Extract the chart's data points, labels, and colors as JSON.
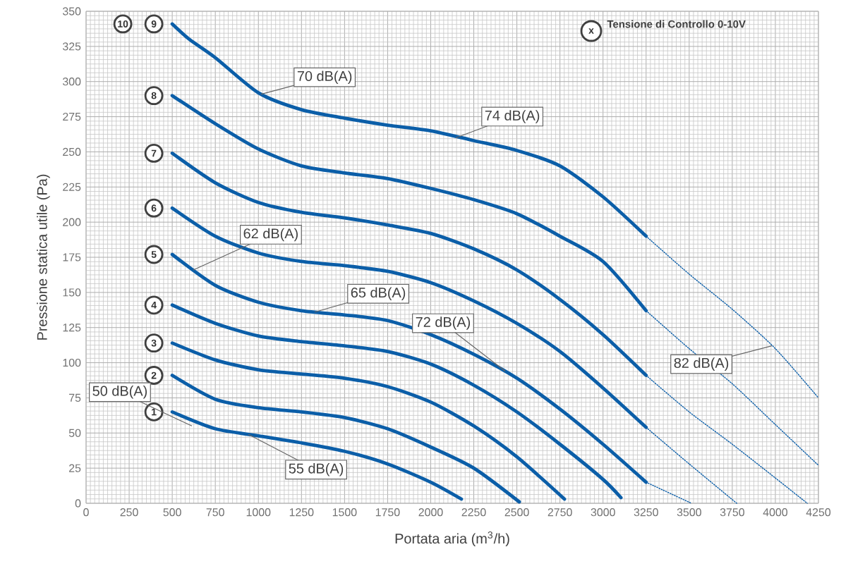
{
  "chart_data": {
    "type": "line",
    "xlabel": "Portata aria (m$^{3}$/h)",
    "ylabel": "Pressione statica utile (Pa)",
    "xlim": [
      0,
      4250
    ],
    "ylim": [
      0,
      350
    ],
    "xticks": [
      0,
      250,
      500,
      750,
      1000,
      1250,
      1500,
      1750,
      2000,
      2250,
      2500,
      2750,
      3000,
      3250,
      3500,
      3750,
      4000,
      4250
    ],
    "yticks": [
      0,
      25,
      50,
      75,
      100,
      125,
      150,
      175,
      200,
      225,
      250,
      275,
      300,
      325,
      350
    ],
    "grid": true,
    "series": [
      {
        "name": "1",
        "color": "#0b5ea8",
        "line_style": "solid",
        "x": [
          500,
          750,
          1000,
          1250,
          1500,
          1750,
          2000,
          2178
        ],
        "values": [
          65,
          53,
          48,
          43,
          37,
          28,
          15,
          3
        ]
      },
      {
        "name": "2",
        "color": "#0b5ea8",
        "line_style": "solid",
        "x": [
          500,
          750,
          1000,
          1250,
          1500,
          1750,
          2000,
          2250,
          2514
        ],
        "values": [
          91,
          74,
          68,
          65,
          61,
          53,
          40,
          25,
          1
        ]
      },
      {
        "name": "3",
        "color": "#0b5ea8",
        "line_style": "solid",
        "x": [
          500,
          750,
          1000,
          1250,
          1500,
          1750,
          2000,
          2250,
          2500,
          2776
        ],
        "values": [
          114,
          102,
          95,
          92,
          89,
          83,
          72,
          55,
          33,
          3
        ]
      },
      {
        "name": "4",
        "color": "#0b5ea8",
        "line_style": "solid",
        "x": [
          500,
          750,
          1000,
          1250,
          1500,
          1750,
          2000,
          2250,
          2500,
          2750,
          3000,
          3104
        ],
        "values": [
          141,
          128,
          119,
          115,
          112,
          108,
          99,
          84,
          65,
          42,
          17,
          4
        ]
      },
      {
        "name": "5",
        "color": "#0b5ea8",
        "line_style": "solid",
        "x": [
          500,
          750,
          1000,
          1250,
          1500,
          1750,
          2000,
          2250,
          2500,
          2750,
          3000,
          3250
        ],
        "values": [
          177,
          155,
          143,
          137,
          134,
          130,
          120,
          106,
          89,
          67,
          42,
          15
        ]
      },
      {
        "name": "6",
        "color": "#0b5ea8",
        "line_style": "solid",
        "x": [
          500,
          750,
          1000,
          1250,
          1500,
          1750,
          2000,
          2250,
          2500,
          2750,
          3000,
          3250
        ],
        "values": [
          210,
          190,
          178,
          172,
          169,
          165,
          157,
          144,
          128,
          108,
          82,
          54
        ]
      },
      {
        "name": "7",
        "color": "#0b5ea8",
        "line_style": "solid",
        "x": [
          500,
          750,
          1000,
          1250,
          1500,
          1750,
          2000,
          2250,
          2500,
          2750,
          3000,
          3250
        ],
        "values": [
          249,
          228,
          214,
          207,
          203,
          198,
          192,
          181,
          166,
          145,
          120,
          91
        ]
      },
      {
        "name": "8",
        "color": "#0b5ea8",
        "line_style": "solid",
        "x": [
          500,
          750,
          1000,
          1250,
          1500,
          1750,
          2000,
          2250,
          2500,
          2750,
          3000,
          3250
        ],
        "values": [
          290,
          270,
          252,
          240,
          235,
          231,
          224,
          216,
          206,
          190,
          172,
          137
        ]
      },
      {
        "name": "9",
        "color": "#0b5ea8",
        "line_style": "solid",
        "x": [
          500,
          600,
          750,
          1000,
          1250,
          1500,
          1750,
          2000,
          2250,
          2500,
          2750,
          3000,
          3250
        ],
        "values": [
          341,
          330,
          317,
          292,
          280,
          274,
          269,
          265,
          258,
          251,
          240,
          218,
          190
        ]
      },
      {
        "color": "#0b5ea8",
        "line_style": "dotted",
        "x": [
          3250,
          3513
        ],
        "values": [
          15,
          0
        ]
      },
      {
        "color": "#0b5ea8",
        "line_style": "dotted",
        "x": [
          3250,
          3500,
          3776
        ],
        "values": [
          54,
          28,
          0
        ]
      },
      {
        "color": "#0b5ea8",
        "line_style": "dotted",
        "x": [
          3250,
          3500,
          3750,
          4000,
          4185
        ],
        "values": [
          91,
          65,
          42,
          18,
          0
        ]
      },
      {
        "color": "#0b5ea8",
        "line_style": "dotted",
        "x": [
          3250,
          3500,
          3750,
          4000,
          4250
        ],
        "values": [
          137,
          110,
          85,
          56,
          27
        ]
      },
      {
        "color": "#0b5ea8",
        "line_style": "dotted",
        "x": [
          3250,
          3500,
          3750,
          4000,
          4250
        ],
        "values": [
          190,
          163,
          138,
          110,
          75
        ]
      }
    ],
    "annotations": [
      "10",
      "x",
      "Tensione di Controllo 0-10V",
      {
        "text": "70 dB(A)",
        "x": 1016,
        "y": 291
      },
      {
        "text": "74 dB(A)",
        "x": 2146,
        "y": 260
      },
      {
        "text": "62 dB(A)",
        "x": 622,
        "y": 166
      },
      {
        "text": "65 dB(A)",
        "x": 1327,
        "y": 136
      },
      {
        "text": "72 dB(A)",
        "x": 2432,
        "y": 94
      },
      {
        "text": "50 dB(A)",
        "x": 614,
        "y": 55
      },
      {
        "text": "55 dB(A)",
        "x": 942,
        "y": 49
      },
      {
        "text": "82 dB(A)",
        "x": 3980,
        "y": 112
      }
    ]
  }
}
